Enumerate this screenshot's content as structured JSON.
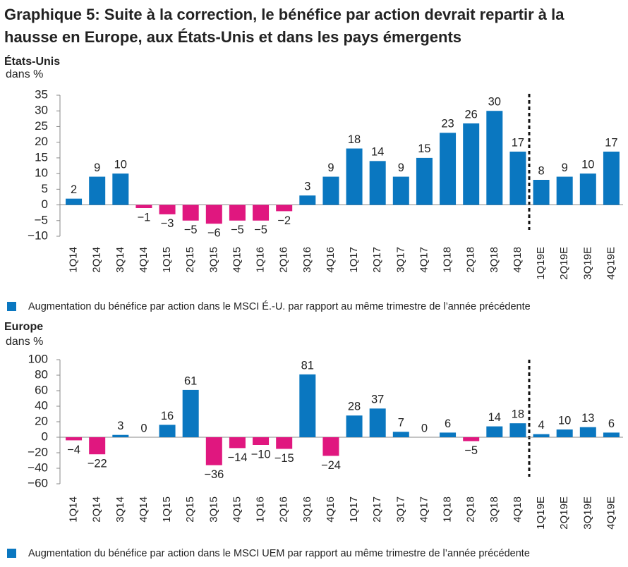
{
  "title_line1": "Graphique 5: Suite à la correction, le bénéfice par action devrait repartir à la",
  "title_line2": "hausse en Europe, aux États-Unis et dans les pays émergents",
  "chart_data": [
    {
      "type": "bar",
      "title": "États-Unis",
      "y_label": "dans %",
      "categories": [
        "1Q14",
        "2Q14",
        "3Q14",
        "4Q14",
        "1Q15",
        "2Q15",
        "3Q15",
        "4Q15",
        "1Q16",
        "2Q16",
        "3Q16",
        "4Q16",
        "1Q17",
        "2Q17",
        "3Q17",
        "4Q17",
        "1Q18",
        "2Q18",
        "3Q18",
        "4Q18",
        "1Q19E",
        "2Q19E",
        "3Q19E",
        "4Q19E"
      ],
      "series": [
        {
          "name": "Augmentation du bénéfice par action dans le MSCI É.-U. par rapport au même trimestre de l’année précédente",
          "color": "#0a77c0",
          "negative_color": "#e0177f",
          "values": [
            2,
            9,
            10,
            -1,
            -3,
            -5,
            -6,
            -5,
            -5,
            -2,
            3,
            9,
            18,
            14,
            9,
            15,
            23,
            26,
            30,
            17,
            8,
            9,
            10,
            17
          ],
          "value_labels": [
            "2",
            "9",
            "10",
            "−1",
            "−3",
            "−5",
            "−6",
            "−5",
            "−5",
            "−2",
            "3",
            "9",
            "18",
            "14",
            "9",
            "15",
            "23",
            "26",
            "30",
            "17",
            "8",
            "9",
            "10",
            "17"
          ]
        }
      ],
      "ylim": [
        -10,
        35
      ],
      "yticks": [
        {
          "value": -10,
          "label": "−10"
        },
        {
          "value": -5,
          "label": "−5"
        },
        0,
        5,
        10,
        15,
        20,
        25,
        30,
        35
      ]
    },
    {
      "type": "bar",
      "title": "Europe",
      "y_label": "dans %",
      "categories": [
        "1Q14",
        "2Q14",
        "3Q14",
        "4Q14",
        "1Q15",
        "2Q15",
        "3Q15",
        "4Q15",
        "1Q16",
        "2Q16",
        "3Q16",
        "4Q16",
        "1Q17",
        "2Q17",
        "3Q17",
        "4Q17",
        "1Q18",
        "2Q18",
        "3Q18",
        "4Q18",
        "1Q19E",
        "2Q19E",
        "3Q19E",
        "4Q19E"
      ],
      "series": [
        {
          "name": "Augmentation du bénéfice par action dans le MSCI UEM par rapport au même trimestre de l’année précédente",
          "color": "#0a77c0",
          "negative_color": "#e0177f",
          "values": [
            -4,
            -22,
            3,
            0,
            16,
            61,
            -36,
            -14,
            -10,
            -15,
            81,
            -24,
            28,
            37,
            7,
            0,
            6,
            -5,
            14,
            18,
            4,
            10,
            13,
            6
          ],
          "value_labels": [
            "−4",
            "−22",
            "3",
            "0",
            "16",
            "61",
            "−36",
            "−14",
            "−10",
            "−15",
            "81",
            "−24",
            "28",
            "37",
            "7",
            "0",
            "6",
            "−5",
            "14",
            "18",
            "4",
            "10",
            "13",
            "6"
          ]
        }
      ],
      "ylim": [
        -60,
        100
      ],
      "yticks": [
        {
          "value": -60,
          "label": "−60"
        },
        {
          "value": -40,
          "label": "−40"
        },
        {
          "value": -20,
          "label": "−20"
        },
        0,
        20,
        40,
        60,
        80,
        100
      ]
    }
  ]
}
